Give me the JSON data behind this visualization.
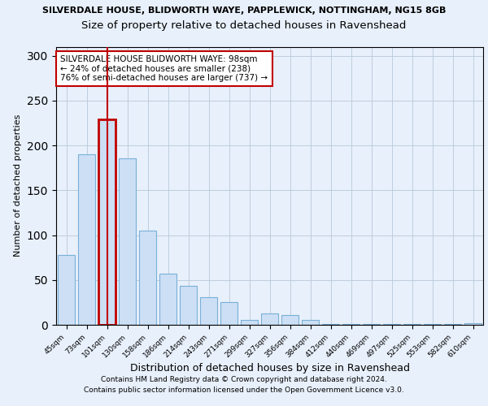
{
  "title_line1": "SILVERDALE HOUSE, BLIDWORTH WAYE, PAPPLEWICK, NOTTINGHAM, NG15 8GB",
  "title_line2": "Size of property relative to detached houses in Ravenshead",
  "xlabel": "Distribution of detached houses by size in Ravenshead",
  "ylabel": "Number of detached properties",
  "categories": [
    "45sqm",
    "73sqm",
    "101sqm",
    "130sqm",
    "158sqm",
    "186sqm",
    "214sqm",
    "243sqm",
    "271sqm",
    "299sqm",
    "327sqm",
    "356sqm",
    "384sqm",
    "412sqm",
    "440sqm",
    "469sqm",
    "497sqm",
    "525sqm",
    "553sqm",
    "582sqm",
    "610sqm"
  ],
  "values": [
    78,
    190,
    229,
    186,
    105,
    57,
    43,
    31,
    25,
    5,
    13,
    11,
    5,
    1,
    1,
    1,
    1,
    1,
    1,
    1,
    2
  ],
  "highlight_index": 2,
  "bar_color": "#ccdff5",
  "bar_edge_color": "#7ab0d8",
  "highlight_bar_edge_color": "#c00000",
  "annotation_box_edge": "#c00000",
  "annotation_text": "SILVERDALE HOUSE BLIDWORTH WAYE: 98sqm\n← 24% of detached houses are smaller (238)\n76% of semi-detached houses are larger (737) →",
  "annotation_fontsize": 7.5,
  "ylim": [
    0,
    310
  ],
  "yticks": [
    0,
    50,
    100,
    150,
    200,
    250,
    300
  ],
  "footer_line1": "Contains HM Land Registry data © Crown copyright and database right 2024.",
  "footer_line2": "Contains public sector information licensed under the Open Government Licence v3.0.",
  "background_color": "#e8f0fb",
  "plot_bg_color": "#e8f0fb",
  "title1_fontsize": 8.0,
  "title2_fontsize": 9.5,
  "xlabel_fontsize": 9,
  "ylabel_fontsize": 8,
  "footer_fontsize": 6.5
}
